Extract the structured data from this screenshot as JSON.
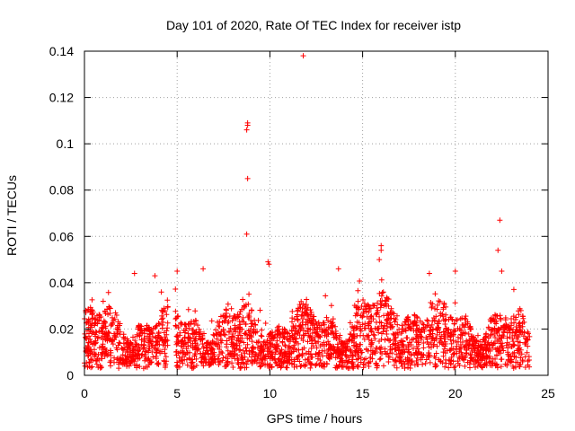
{
  "chart_data": {
    "type": "scatter",
    "title": "Day 101 of 2020, Rate Of TEC Index for receiver istp",
    "xlabel": "GPS time / hours",
    "ylabel": "ROTI / TECUs",
    "xlim": [
      0,
      25
    ],
    "ylim": [
      0,
      0.14
    ],
    "xticks": [
      0,
      5,
      10,
      15,
      20,
      25
    ],
    "xtick_labels": [
      "0",
      "5",
      "10",
      "15",
      "20",
      "25"
    ],
    "yticks": [
      0,
      0.02,
      0.04,
      0.06,
      0.08,
      0.1,
      0.12,
      0.14
    ],
    "ytick_labels": [
      "0",
      "0.02",
      "0.04",
      "0.06",
      "0.08",
      "0.1",
      "0.12",
      "0.14"
    ],
    "grid": true,
    "marker": "+",
    "series": [
      {
        "name": "ROTI",
        "color": "#ff0000",
        "gap_hours": [
          4.5,
          4.9
        ],
        "time_range": [
          0.0,
          24.0
        ],
        "typical_range": [
          0.003,
          0.035
        ],
        "notable_points": [
          {
            "x": 8.8,
            "y": 0.109
          },
          {
            "x": 8.8,
            "y": 0.108
          },
          {
            "x": 8.75,
            "y": 0.106
          },
          {
            "x": 8.8,
            "y": 0.085
          },
          {
            "x": 8.75,
            "y": 0.061
          },
          {
            "x": 11.8,
            "y": 0.138
          },
          {
            "x": 22.4,
            "y": 0.067
          },
          {
            "x": 22.3,
            "y": 0.054
          },
          {
            "x": 22.5,
            "y": 0.045
          },
          {
            "x": 16.0,
            "y": 0.056
          },
          {
            "x": 16.0,
            "y": 0.054
          },
          {
            "x": 15.9,
            "y": 0.05
          },
          {
            "x": 9.9,
            "y": 0.049
          },
          {
            "x": 9.95,
            "y": 0.048
          },
          {
            "x": 2.7,
            "y": 0.044
          },
          {
            "x": 3.8,
            "y": 0.043
          },
          {
            "x": 5.0,
            "y": 0.045
          },
          {
            "x": 6.4,
            "y": 0.046
          },
          {
            "x": 13.7,
            "y": 0.046
          },
          {
            "x": 18.6,
            "y": 0.044
          },
          {
            "x": 20.0,
            "y": 0.045
          }
        ]
      }
    ]
  }
}
